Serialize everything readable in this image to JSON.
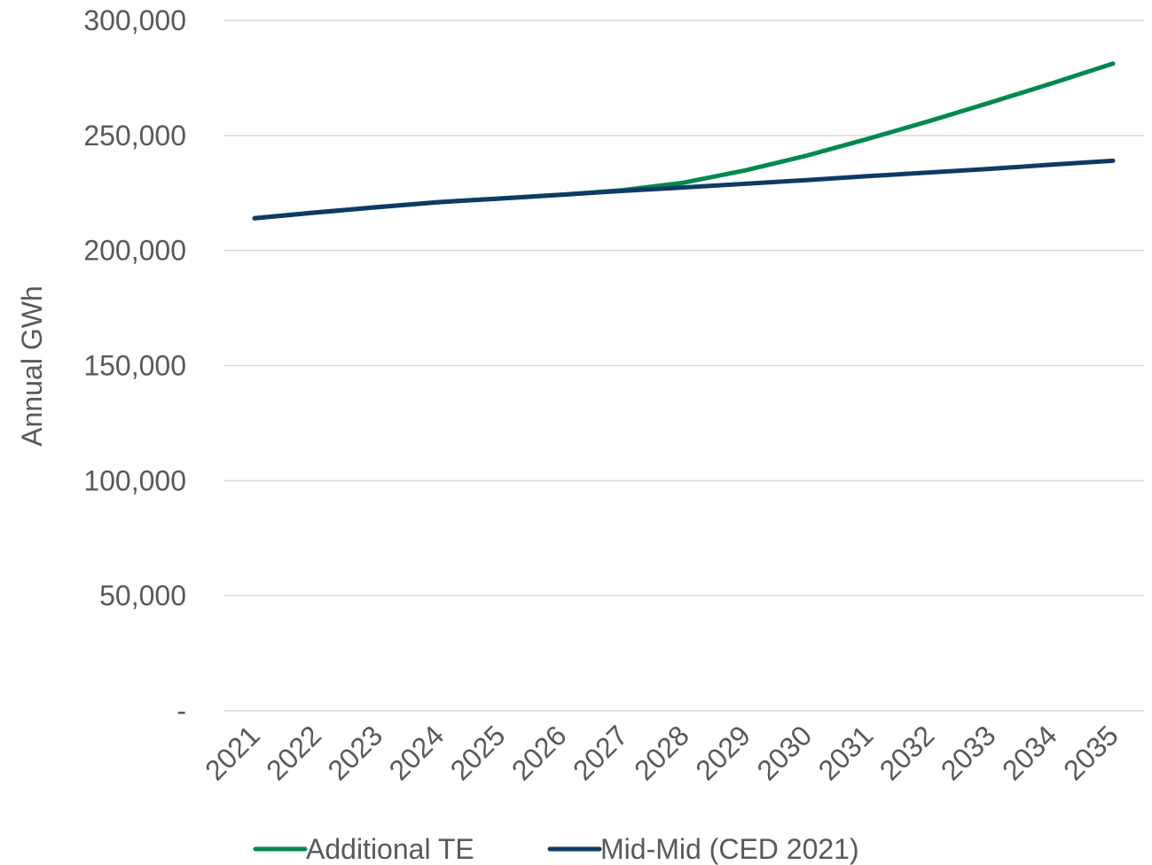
{
  "chart_data": {
    "type": "line",
    "title": "",
    "xlabel": "",
    "ylabel": "Annual GWh",
    "x": [
      "2021",
      "2022",
      "2023",
      "2024",
      "2025",
      "2026",
      "2027",
      "2028",
      "2029",
      "2030",
      "2031",
      "2032",
      "2033",
      "2034",
      "2035"
    ],
    "ylim": [
      0,
      300000
    ],
    "yticks": [
      0,
      50000,
      100000,
      150000,
      200000,
      250000,
      300000
    ],
    "ytick_labels": [
      "-",
      "50,000",
      "100,000",
      "150,000",
      "200,000",
      "250,000",
      "300,000"
    ],
    "grid": "horizontal",
    "legend_position": "bottom",
    "series": [
      {
        "name": "Additional TE",
        "color": "#00894f",
        "values": [
          214000,
          216500,
          218800,
          221000,
          222600,
          224200,
          226200,
          229500,
          234800,
          241200,
          248500,
          256200,
          264300,
          272600,
          281200
        ]
      },
      {
        "name": "Mid-Mid (CED 2021)",
        "color": "#0e3a64",
        "values": [
          214000,
          216500,
          218800,
          221000,
          222600,
          224200,
          225900,
          227400,
          229000,
          230600,
          232300,
          233900,
          235500,
          237300,
          239000
        ]
      }
    ]
  }
}
